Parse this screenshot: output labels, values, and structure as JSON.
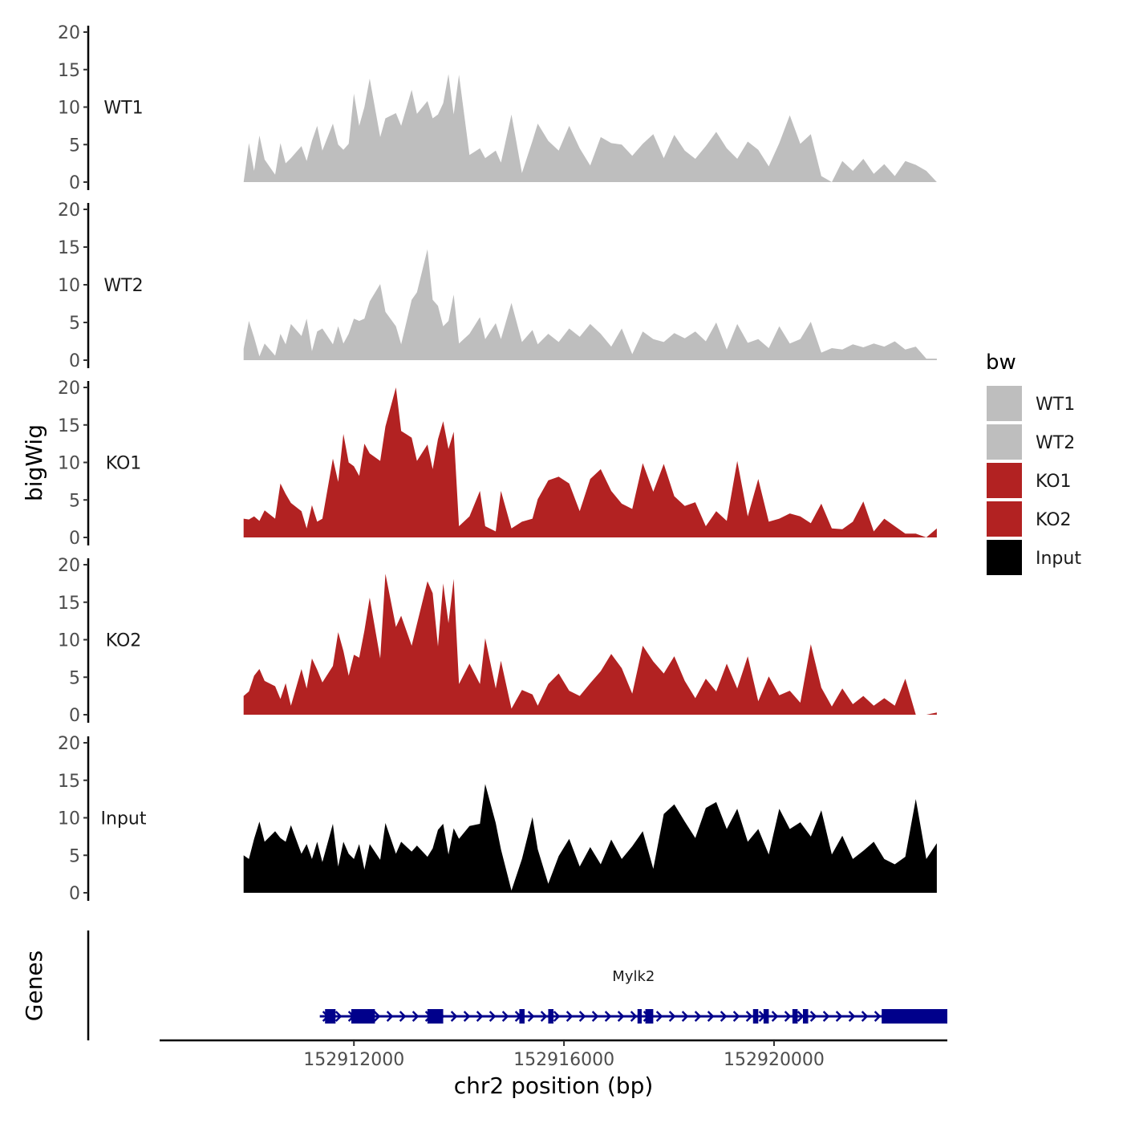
{
  "chart_data": {
    "type": "area",
    "title": "",
    "ylabel": "bigWig",
    "xlabel": "chr2 position (bp)",
    "ylim": [
      0,
      20
    ],
    "y_ticks": [
      0,
      5,
      10,
      15,
      20
    ],
    "y_tick_labels": [
      "0",
      "5",
      "10",
      "15",
      "20"
    ],
    "xlim": [
      152908300,
      152923300
    ],
    "x_ticks": [
      152912000,
      152916000,
      152920000
    ],
    "x_tick_labels": [
      "152912000",
      "152916000",
      "152920000"
    ],
    "legend": {
      "title": "bw",
      "position": "right",
      "entries": [
        {
          "label": "WT1",
          "color": "#bebebe"
        },
        {
          "label": "WT2",
          "color": "#bebebe"
        },
        {
          "label": "KO1",
          "color": "#b22222"
        },
        {
          "label": "KO2",
          "color": "#b22222"
        },
        {
          "label": "Input",
          "color": "#000000"
        }
      ]
    },
    "series": [
      {
        "name": "WT1",
        "color": "#bebebe",
        "x": [
          152909900,
          152910000,
          152910100,
          152910200,
          152910300,
          152910500,
          152910600,
          152910700,
          152910800,
          152911000,
          152911100,
          152911200,
          152911300,
          152911400,
          152911600,
          152911700,
          152911800,
          152911900,
          152912000,
          152912100,
          152912200,
          152912300,
          152912500,
          152912600,
          152912800,
          152912900,
          152913100,
          152913200,
          152913400,
          152913500,
          152913600,
          152913700,
          152913800,
          152913900,
          152914000,
          152914200,
          152914400,
          152914500,
          152914700,
          152914800,
          152915000,
          152915200,
          152915400,
          152915500,
          152915700,
          152915900,
          152916100,
          152916300,
          152916500,
          152916700,
          152916900,
          152917100,
          152917300,
          152917500,
          152917700,
          152917900,
          152918100,
          152918300,
          152918500,
          152918700,
          152918900,
          152919100,
          152919300,
          152919500,
          152919700,
          152919900,
          152920100,
          152920300,
          152920500,
          152920700,
          152920900,
          152921100,
          152921300,
          152921500,
          152921700,
          152921900,
          152922100,
          152922300,
          152922500,
          152922700,
          152922900,
          152923100
        ],
        "values": [
          0,
          5.2,
          1.5,
          6.2,
          3,
          1,
          5.2,
          2.5,
          3.2,
          4.8,
          2.8,
          5.5,
          7.5,
          4.2,
          7.8,
          5,
          4.3,
          5.1,
          11.8,
          7.5,
          10,
          13.8,
          6,
          8.5,
          9.2,
          7.5,
          12.3,
          9.1,
          10.8,
          8.5,
          9,
          10.5,
          14.4,
          9,
          14.3,
          3.6,
          4.5,
          3.2,
          4.2,
          2.6,
          9,
          1.2,
          5.5,
          7.8,
          5.5,
          4.2,
          7.5,
          4.5,
          2.2,
          6,
          5.2,
          5,
          3.5,
          5.1,
          6.4,
          3.2,
          6.3,
          4.2,
          3.1,
          4.8,
          6.7,
          4.5,
          3.1,
          5.4,
          4.3,
          2.1,
          5.2,
          8.9,
          5.1,
          6.4,
          0.8,
          0,
          2.8,
          1.5,
          3.1,
          1.1,
          2.4,
          0.8,
          2.8,
          2.3,
          1.5,
          0
        ]
      },
      {
        "name": "WT2",
        "color": "#bebebe",
        "x": [
          152909900,
          152910000,
          152910100,
          152910200,
          152910300,
          152910500,
          152910600,
          152910700,
          152910800,
          152911000,
          152911100,
          152911200,
          152911300,
          152911400,
          152911600,
          152911700,
          152911800,
          152911900,
          152912000,
          152912100,
          152912200,
          152912300,
          152912500,
          152912600,
          152912800,
          152912900,
          152913100,
          152913200,
          152913400,
          152913500,
          152913600,
          152913700,
          152913800,
          152913900,
          152914000,
          152914200,
          152914400,
          152914500,
          152914700,
          152914800,
          152915000,
          152915200,
          152915400,
          152915500,
          152915700,
          152915900,
          152916100,
          152916300,
          152916500,
          152916700,
          152916900,
          152917100,
          152917300,
          152917500,
          152917700,
          152917900,
          152918100,
          152918300,
          152918500,
          152918700,
          152918900,
          152919100,
          152919300,
          152919500,
          152919700,
          152919900,
          152920100,
          152920300,
          152920500,
          152920700,
          152920900,
          152921100,
          152921300,
          152921500,
          152921700,
          152921900,
          152922100,
          152922300,
          152922500,
          152922700,
          152922900,
          152923100
        ],
        "values": [
          1.5,
          5.2,
          3,
          0.5,
          2.2,
          0.6,
          3.5,
          2.1,
          4.8,
          3.2,
          5.5,
          1.2,
          3.8,
          4.2,
          2.1,
          4.5,
          2.2,
          3.5,
          5.5,
          5.2,
          5.5,
          7.8,
          10.1,
          6.4,
          4.5,
          2.1,
          8,
          9,
          14.7,
          8,
          7.2,
          4.5,
          5.2,
          8.7,
          2.2,
          3.5,
          5.7,
          2.8,
          4.9,
          2.8,
          7.6,
          2.4,
          4,
          2.1,
          3.5,
          2.4,
          4.2,
          3.1,
          4.8,
          3.5,
          1.8,
          4.2,
          0.8,
          3.8,
          2.8,
          2.4,
          3.6,
          2.9,
          3.8,
          2.5,
          5,
          1.4,
          4.8,
          2.3,
          2.8,
          1.6,
          4.5,
          2.2,
          2.8,
          5.1,
          1,
          1.6,
          1.4,
          2.1,
          1.7,
          2.2,
          1.8,
          2.5,
          1.4,
          1.8,
          0.2,
          0.2
        ]
      },
      {
        "name": "KO1",
        "color": "#b22222",
        "x": [
          152909900,
          152910000,
          152910100,
          152910200,
          152910300,
          152910500,
          152910600,
          152910700,
          152910800,
          152911000,
          152911100,
          152911200,
          152911300,
          152911400,
          152911600,
          152911700,
          152911800,
          152911900,
          152912000,
          152912100,
          152912200,
          152912300,
          152912500,
          152912600,
          152912800,
          152912900,
          152913100,
          152913200,
          152913400,
          152913500,
          152913600,
          152913700,
          152913800,
          152913900,
          152914000,
          152914200,
          152914400,
          152914500,
          152914700,
          152914800,
          152915000,
          152915200,
          152915400,
          152915500,
          152915700,
          152915900,
          152916100,
          152916300,
          152916500,
          152916700,
          152916900,
          152917100,
          152917300,
          152917500,
          152917700,
          152917900,
          152918100,
          152918300,
          152918500,
          152918700,
          152918900,
          152919100,
          152919300,
          152919500,
          152919700,
          152919900,
          152920100,
          152920300,
          152920500,
          152920700,
          152920900,
          152921100,
          152921300,
          152921500,
          152921700,
          152921900,
          152922100,
          152922300,
          152922500,
          152922700,
          152922900,
          152923100
        ],
        "values": [
          2.5,
          2.4,
          2.8,
          2.2,
          3.6,
          2.5,
          7.2,
          5.8,
          4.6,
          3.5,
          1.2,
          4.3,
          2.1,
          2.5,
          10.5,
          7.4,
          13.8,
          10,
          9.5,
          8.2,
          12.5,
          11.2,
          10.2,
          14.8,
          20,
          14.2,
          13.3,
          10.2,
          12.4,
          9.1,
          13.1,
          15.5,
          11.8,
          14.1,
          1.5,
          2.8,
          6.2,
          1.5,
          0.8,
          6.2,
          1.2,
          2.1,
          2.5,
          5.1,
          7.6,
          8.1,
          7.2,
          3.5,
          7.8,
          9.1,
          6.2,
          4.5,
          3.8,
          9.9,
          6.1,
          9.8,
          5.5,
          4.2,
          4.7,
          1.5,
          3.5,
          2.2,
          10.2,
          2.8,
          7.8,
          2.1,
          2.5,
          3.2,
          2.8,
          1.9,
          4.5,
          1.2,
          1.1,
          2.1,
          4.8,
          0.8,
          2.5,
          1.5,
          0.5,
          0.5,
          0,
          1.2
        ]
      },
      {
        "name": "KO2",
        "color": "#b22222",
        "x": [
          152909900,
          152910000,
          152910100,
          152910200,
          152910300,
          152910500,
          152910600,
          152910700,
          152910800,
          152911000,
          152911100,
          152911200,
          152911300,
          152911400,
          152911600,
          152911700,
          152911800,
          152911900,
          152912000,
          152912100,
          152912200,
          152912300,
          152912500,
          152912600,
          152912800,
          152912900,
          152913100,
          152913200,
          152913400,
          152913500,
          152913600,
          152913700,
          152913800,
          152913900,
          152914000,
          152914200,
          152914400,
          152914500,
          152914700,
          152914800,
          152915000,
          152915200,
          152915400,
          152915500,
          152915700,
          152915900,
          152916100,
          152916300,
          152916500,
          152916700,
          152916900,
          152917100,
          152917300,
          152917500,
          152917700,
          152917900,
          152918100,
          152918300,
          152918500,
          152918700,
          152918900,
          152919100,
          152919300,
          152919500,
          152919700,
          152919900,
          152920100,
          152920300,
          152920500,
          152920700,
          152920900,
          152921100,
          152921300,
          152921500,
          152921700,
          152921900,
          152922100,
          152922300,
          152922500,
          152922700,
          152922900,
          152923100
        ],
        "values": [
          2.5,
          3.1,
          5.2,
          6.1,
          4.5,
          3.8,
          2.1,
          4.2,
          1.2,
          6.1,
          3.5,
          7.5,
          6,
          4.3,
          6.5,
          11,
          8.5,
          5.2,
          8,
          7.6,
          11.2,
          15.6,
          7.5,
          18.8,
          11.7,
          13.2,
          9.2,
          12.1,
          17.8,
          16.2,
          9.1,
          17.5,
          12.2,
          18.1,
          4.1,
          6.8,
          4.1,
          10.2,
          3.5,
          7.2,
          0.8,
          3.3,
          2.7,
          1.2,
          4.1,
          5.5,
          3.2,
          2.5,
          4.2,
          5.8,
          8.1,
          6.2,
          2.8,
          9.2,
          7.1,
          5.5,
          7.8,
          4.5,
          2.2,
          4.8,
          3.1,
          6.8,
          3.5,
          7.8,
          1.8,
          5.1,
          2.6,
          3.2,
          1.6,
          9.4,
          3.6,
          1.1,
          3.5,
          1.4,
          2.5,
          1.2,
          2.2,
          1.2,
          4.8,
          0,
          0,
          0.3
        ]
      },
      {
        "name": "Input",
        "color": "#000000",
        "x": [
          152909900,
          152910000,
          152910100,
          152910200,
          152910300,
          152910500,
          152910600,
          152910700,
          152910800,
          152911000,
          152911100,
          152911200,
          152911300,
          152911400,
          152911600,
          152911700,
          152911800,
          152911900,
          152912000,
          152912100,
          152912200,
          152912300,
          152912500,
          152912600,
          152912800,
          152912900,
          152913100,
          152913200,
          152913400,
          152913500,
          152913600,
          152913700,
          152913800,
          152913900,
          152914000,
          152914200,
          152914400,
          152914500,
          152914700,
          152914800,
          152915000,
          152915200,
          152915400,
          152915500,
          152915700,
          152915900,
          152916100,
          152916300,
          152916500,
          152916700,
          152916900,
          152917100,
          152917300,
          152917500,
          152917700,
          152917900,
          152918100,
          152918300,
          152918500,
          152918700,
          152918900,
          152919100,
          152919300,
          152919500,
          152919700,
          152919900,
          152920100,
          152920300,
          152920500,
          152920700,
          152920900,
          152921100,
          152921300,
          152921500,
          152921700,
          152921900,
          152922100,
          152922300,
          152922500,
          152922700,
          152922900,
          152923100
        ],
        "values": [
          5,
          4.5,
          7.2,
          9.5,
          6.8,
          8.2,
          7.3,
          6.8,
          9,
          5.2,
          6.5,
          4.5,
          6.8,
          4.1,
          9.2,
          3.5,
          6.8,
          5.2,
          4.5,
          6.5,
          3.1,
          6.5,
          4.4,
          9.3,
          5.2,
          6.8,
          5.5,
          6.3,
          4.8,
          5.9,
          8.4,
          9.2,
          5.1,
          8.6,
          7.2,
          8.9,
          9.2,
          14.5,
          9.3,
          5.8,
          0.3,
          4.5,
          10.1,
          5.8,
          1.2,
          4.9,
          7.2,
          3.5,
          6.1,
          3.8,
          7.1,
          4.5,
          6.2,
          8.2,
          3.2,
          10.5,
          11.8,
          9.5,
          7.3,
          11.3,
          12.1,
          8.5,
          11.2,
          6.8,
          8.5,
          5.1,
          11.2,
          8.5,
          9.4,
          7.5,
          11,
          5.1,
          7.6,
          4.5,
          5.6,
          6.8,
          4.5,
          3.8,
          4.8,
          12.5,
          4.5,
          6.6
        ]
      }
    ],
    "genes_track": {
      "label": "Genes",
      "genes": [
        {
          "name": "Mylk2",
          "start": 152911350,
          "end": 152923300,
          "strand": "+",
          "exons": [
            [
              152911450,
              152911650
            ],
            [
              152911950,
              152912400
            ],
            [
              152913400,
              152913700
            ],
            [
              152915150,
              152915250
            ],
            [
              152915700,
              152915800
            ],
            [
              152917400,
              152917480
            ],
            [
              152917550,
              152917700
            ],
            [
              152919600,
              152919700
            ],
            [
              152919800,
              152919900
            ],
            [
              152920350,
              152920450
            ],
            [
              152920550,
              152920650
            ],
            [
              152922050,
              152923300
            ]
          ]
        }
      ]
    }
  }
}
